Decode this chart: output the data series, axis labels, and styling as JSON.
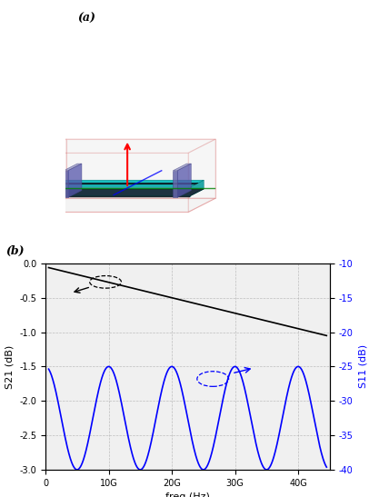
{
  "title_a": "(a)",
  "title_b": "(b)",
  "s21_yticks": [
    0.0,
    -0.5,
    -1.0,
    -1.5,
    -2.0,
    -2.5,
    -3.0
  ],
  "s11_yticks": [
    -10,
    -15,
    -20,
    -25,
    -30,
    -35,
    -40
  ],
  "freq_xticks": [
    0,
    10000000000.0,
    20000000000.0,
    30000000000.0,
    40000000000.0
  ],
  "freq_xlabels": [
    "0",
    "10G",
    "20G",
    "30G",
    "40G"
  ],
  "xlabel": "freq (Hz)",
  "ylabel_left": "S21 (dB)",
  "ylabel_right": "S11 (dB)",
  "bg_color": "#f0f0f0",
  "grid_color": "#aaaaaa",
  "s21_color": "black",
  "s11_color": "blue",
  "box_color_red": "#cc3333",
  "box_color_green": "#228822",
  "box_color_blue": "#2222cc",
  "teal_color": "#00aaaa",
  "dark_color": "#222233",
  "port_color": "#6666aa"
}
